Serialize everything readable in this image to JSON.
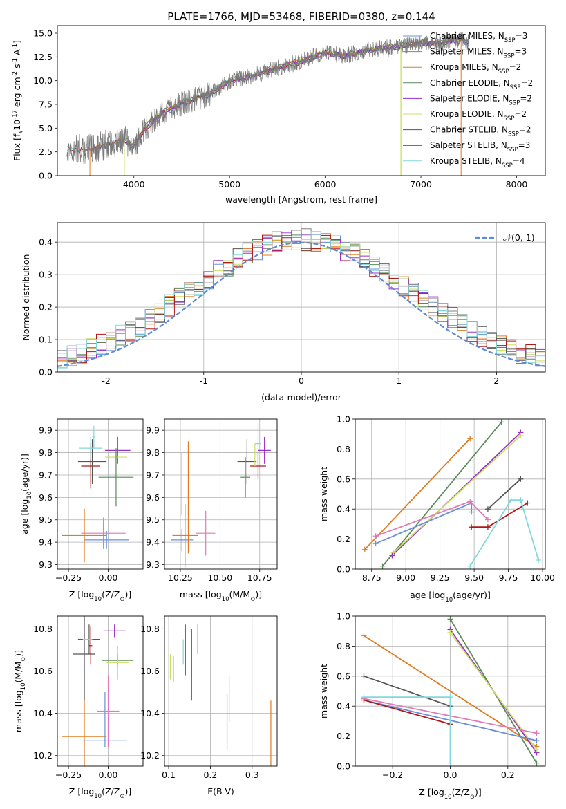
{
  "figure_title": "PLATE=1766, MJD=53468, FIBERID=0380, z=0.144",
  "colors": {
    "Chabrier MILES": "#6b8fd6",
    "Salpeter MILES": "#808080",
    "Kroupa MILES": "#e07b1f",
    "Chabrier ELODIE": "#5a8a5a",
    "Salpeter ELODIE": "#9b30c8",
    "Kroupa ELODIE": "#c8e060",
    "Chabrier STELIB": "#555555",
    "Salpeter STELIB": "#b01818",
    "Kroupa STELIB": "#80d8dc",
    "pink": "#e07ab8",
    "normal": "#5b8bd9",
    "grid": "#b0b0b0"
  },
  "chart_data": [
    {
      "id": "spectrum",
      "type": "line",
      "xlabel": "wavelength [Angstrom, rest frame]",
      "ylabel_parts": [
        "Flux [f",
        "λ",
        "10",
        "-17",
        " erg cm",
        "-2",
        " s",
        "-1",
        " A",
        "-1",
        "]"
      ],
      "xlim": [
        3200,
        8300
      ],
      "ylim": [
        0,
        15.8
      ],
      "xticks": [
        4000,
        5000,
        6000,
        7000,
        8000
      ],
      "yticks": [
        0.0,
        2.5,
        5.0,
        7.5,
        10.0,
        12.5,
        15.0
      ],
      "ytick_labels": [
        "0.0",
        "2.5",
        "5.0",
        "7.5",
        "10.0",
        "12.5",
        "15.0"
      ],
      "continuum": [
        [
          3300,
          2.8
        ],
        [
          3500,
          2.7
        ],
        [
          3700,
          3.2
        ],
        [
          3900,
          3.8
        ],
        [
          4000,
          3.0
        ],
        [
          4100,
          4.8
        ],
        [
          4300,
          6.6
        ],
        [
          4500,
          7.6
        ],
        [
          4800,
          8.6
        ],
        [
          5000,
          10.0
        ],
        [
          5200,
          10.4
        ],
        [
          5500,
          11.3
        ],
        [
          5800,
          12.2
        ],
        [
          6000,
          13.0
        ],
        [
          6200,
          12.6
        ],
        [
          6500,
          13.3
        ],
        [
          6800,
          13.6
        ],
        [
          7000,
          14.0
        ],
        [
          7200,
          13.9
        ],
        [
          7400,
          14.4
        ],
        [
          7500,
          14.0
        ]
      ],
      "legend": [
        {
          "label": "Chabrier MILES, N",
          "sub": "SSP",
          "tail": "=3",
          "color": "#6b8fd6"
        },
        {
          "label": "Salpeter MILES, N",
          "sub": "SSP",
          "tail": "=3",
          "color": "#808080"
        },
        {
          "label": "Kroupa MILES, N",
          "sub": "SSP",
          "tail": "=2",
          "color": "#e07b1f"
        },
        {
          "label": "Chabrier ELODIE, N",
          "sub": "SSP",
          "tail": "=2",
          "color": "#5a8a5a"
        },
        {
          "label": "Salpeter ELODIE, N",
          "sub": "SSP",
          "tail": "=2",
          "color": "#9b30c8"
        },
        {
          "label": "Kroupa ELODIE, N",
          "sub": "SSP",
          "tail": "=2",
          "color": "#c8e060"
        },
        {
          "label": "Chabrier STELIB, N",
          "sub": "SSP",
          "tail": "=2",
          "color": "#555555"
        },
        {
          "label": "Salpeter STELIB, N",
          "sub": "SSP",
          "tail": "=3",
          "color": "#b01818"
        },
        {
          "label": "Kroupa STELIB, N",
          "sub": "SSP",
          "tail": "=4",
          "color": "#80d8dc"
        }
      ]
    },
    {
      "id": "residuals",
      "type": "line",
      "xlabel": "(data-model)/error",
      "ylabel": "Normed distribution",
      "xlim": [
        -2.5,
        2.5
      ],
      "ylim": [
        0,
        0.46
      ],
      "xticks": [
        -2,
        -1,
        0,
        1,
        2
      ],
      "yticks": [
        0.0,
        0.1,
        0.2,
        0.3,
        0.4
      ],
      "ytick_labels": [
        "0.0",
        "0.1",
        "0.2",
        "0.3",
        "0.4"
      ],
      "legend_label": "𝒩(0, 1)",
      "bin_width": 0.1
    },
    {
      "id": "age_vs_Z",
      "type": "scatter",
      "xlabel_parts": [
        "Z [log",
        "10",
        "(Z/Z",
        "⊙",
        ")]"
      ],
      "ylabel_parts": [
        "age  [log",
        "10",
        "(age/yr)]"
      ],
      "xlim": [
        -0.32,
        0.22
      ],
      "ylim": [
        9.28,
        9.95
      ],
      "xticks": [
        -0.25,
        0.0
      ],
      "xtick_labels": [
        "−0.25",
        "0.00"
      ],
      "yticks": [
        9.3,
        9.4,
        9.5,
        9.6,
        9.7,
        9.8,
        9.9
      ],
      "ytick_labels": [
        "9.3",
        "9.4",
        "9.5",
        "9.6",
        "9.7",
        "9.8",
        "9.9"
      ],
      "points": [
        {
          "x": -0.03,
          "y": 9.44,
          "xerr": 0.14,
          "yerr": 0.07,
          "color": "#e07ab8"
        },
        {
          "x": -0.01,
          "y": 9.41,
          "xerr": 0.14,
          "yerr": 0.04,
          "color": "#6b8fd6"
        },
        {
          "x": -0.15,
          "y": 9.43,
          "xerr": 0.14,
          "yerr": 0.12,
          "color": "#e07b1f"
        },
        {
          "x": -0.11,
          "y": 9.74,
          "xerr": 0.06,
          "yerr": 0.1,
          "color": "#b01818"
        },
        {
          "x": 0.06,
          "y": 9.81,
          "xerr": 0.08,
          "yerr": 0.06,
          "color": "#9b30c8"
        },
        {
          "x": -0.1,
          "y": 9.76,
          "xerr": 0.09,
          "yerr": 0.1,
          "color": "#555555"
        },
        {
          "x": -0.09,
          "y": 9.87,
          "xerr": 0.01,
          "yerr": 0.05,
          "color": "#80d8dc"
        },
        {
          "x": -0.11,
          "y": 9.82,
          "xerr": 0.07,
          "yerr": 0.05,
          "color": "#80d8dc"
        },
        {
          "x": 0.05,
          "y": 9.78,
          "xerr": 0.07,
          "yerr": 0.03,
          "color": "#c8e060"
        },
        {
          "x": 0.05,
          "y": 9.69,
          "xerr": 0.11,
          "yerr": 0.13,
          "color": "#5a8a5a"
        }
      ]
    },
    {
      "id": "age_vs_mass",
      "type": "scatter",
      "xlabel_parts": [
        "mass [log",
        "10",
        "(M/M",
        "⊙",
        ")]"
      ],
      "xlim": [
        10.15,
        10.86
      ],
      "ylim": [
        9.28,
        9.95
      ],
      "xticks": [
        10.25,
        10.5,
        10.75
      ],
      "xtick_labels": [
        "10.25",
        "10.50",
        "10.75"
      ],
      "yticks": [
        9.3,
        9.4,
        9.5,
        9.6,
        9.7,
        9.8,
        9.9
      ],
      "ytick_labels": [
        "9.3",
        "9.4",
        "9.5",
        "9.6",
        "9.7",
        "9.8",
        "9.9"
      ],
      "points": [
        {
          "x": 10.41,
          "y": 9.44,
          "xerr": 0.06,
          "yerr": 0.1,
          "color": "#e07ab8"
        },
        {
          "x": 10.26,
          "y": 9.41,
          "xerr": 0.07,
          "yerr": 0.05,
          "color": "#6b8fd6"
        },
        {
          "x": 10.28,
          "y": 9.43,
          "xerr": 0.08,
          "yerr": 0.14,
          "color": "#e07b1f"
        },
        {
          "x": 10.26,
          "y": 9.66,
          "xerr": 0.0,
          "yerr": 0.14,
          "color": "#6b8fd6"
        },
        {
          "x": 10.3,
          "y": 9.6,
          "xerr": 0.0,
          "yerr": 0.25,
          "color": "#e07b1f"
        },
        {
          "x": 10.74,
          "y": 9.74,
          "xerr": 0.05,
          "yerr": 0.06,
          "color": "#b01818"
        },
        {
          "x": 10.78,
          "y": 9.81,
          "xerr": 0.04,
          "yerr": 0.06,
          "color": "#9b30c8"
        },
        {
          "x": 10.67,
          "y": 9.76,
          "xerr": 0.06,
          "yerr": 0.1,
          "color": "#555555"
        },
        {
          "x": 10.74,
          "y": 9.84,
          "xerr": 0.02,
          "yerr": 0.09,
          "color": "#80d8dc"
        },
        {
          "x": 10.66,
          "y": 9.69,
          "xerr": 0.03,
          "yerr": 0.09,
          "color": "#5a8a5a"
        },
        {
          "x": 10.72,
          "y": 9.79,
          "xerr": 0.0,
          "yerr": 0.05,
          "color": "#c8e060"
        }
      ]
    },
    {
      "id": "weight_vs_age",
      "type": "line",
      "xlabel_parts": [
        "age  [log",
        "10",
        "(age/yr)]"
      ],
      "ylabel": "mass weight",
      "xlim": [
        8.63,
        10.02
      ],
      "ylim": [
        0,
        1.0
      ],
      "xticks": [
        8.75,
        9.0,
        9.25,
        9.5,
        9.75,
        10.0
      ],
      "xtick_labels": [
        "8.75",
        "9.00",
        "9.25",
        "9.50",
        "9.75",
        "10.00"
      ],
      "yticks": [
        0.0,
        0.2,
        0.4,
        0.6,
        0.8,
        1.0
      ],
      "ytick_labels": [
        "0.0",
        "0.2",
        "0.4",
        "0.6",
        "0.8",
        "1.0"
      ],
      "series": [
        {
          "color": "#e07b1f",
          "x": [
            8.7,
            9.47
          ],
          "y": [
            0.13,
            0.87
          ]
        },
        {
          "color": "#5a8a5a",
          "x": [
            8.83,
            9.7
          ],
          "y": [
            0.02,
            0.98
          ]
        },
        {
          "color": "#9b30c8",
          "x": [
            8.9,
            9.84
          ],
          "y": [
            0.09,
            0.91
          ]
        },
        {
          "color": "#c8e060",
          "x": [
            8.91,
            9.84
          ],
          "y": [
            0.11,
            0.89
          ]
        },
        {
          "color": "#6b8fd6",
          "x": [
            8.78,
            9.48,
            9.48
          ],
          "y": [
            0.17,
            0.44,
            0.38
          ]
        },
        {
          "color": "#e07ab8",
          "x": [
            8.78,
            9.47,
            9.6
          ],
          "y": [
            0.22,
            0.45,
            0.33
          ]
        },
        {
          "color": "#555555",
          "x": [
            9.6,
            9.84
          ],
          "y": [
            0.4,
            0.6
          ]
        },
        {
          "color": "#b01818",
          "x": [
            9.48,
            9.6,
            9.89
          ],
          "y": [
            0.28,
            0.28,
            0.44
          ]
        },
        {
          "color": "#80d8dc",
          "x": [
            9.47,
            9.77,
            9.84,
            9.97
          ],
          "y": [
            0.02,
            0.46,
            0.46,
            0.06
          ]
        }
      ]
    },
    {
      "id": "mass_vs_Z",
      "type": "scatter",
      "xlabel_parts": [
        "Z [log",
        "10",
        "(Z/Z",
        "⊙",
        ")]"
      ],
      "ylabel_parts": [
        "mass [log",
        "10",
        "(M/M",
        "⊙",
        ")]"
      ],
      "xlim": [
        -0.32,
        0.22
      ],
      "ylim": [
        10.15,
        10.86
      ],
      "xticks": [
        -0.25,
        0.0
      ],
      "xtick_labels": [
        "−0.25",
        "0.00"
      ],
      "yticks": [
        10.2,
        10.4,
        10.6,
        10.8
      ],
      "ytick_labels": [
        "10.2",
        "10.4",
        "10.6",
        "10.8"
      ],
      "points": [
        {
          "x": -0.15,
          "y": 10.29,
          "xerr": 0.14,
          "yerr": 0.17,
          "color": "#e07b1f"
        },
        {
          "x": -0.02,
          "y": 10.27,
          "xerr": 0.14,
          "yerr": 0.0,
          "color": "#6b8fd6"
        },
        {
          "x": -0.02,
          "y": 10.37,
          "xerr": 0.0,
          "yerr": 0.13,
          "color": "#6b8fd6"
        },
        {
          "x": 0.0,
          "y": 10.41,
          "xerr": 0.07,
          "yerr": 0.17,
          "color": "#e07ab8"
        },
        {
          "x": -0.15,
          "y": 10.68,
          "xerr": 0.07,
          "yerr": 0.22,
          "color": "#555555"
        },
        {
          "x": -0.12,
          "y": 10.75,
          "xerr": 0.07,
          "yerr": 0.07,
          "color": "#555555"
        },
        {
          "x": -0.11,
          "y": 10.72,
          "xerr": 0.01,
          "yerr": 0.09,
          "color": "#b01818"
        },
        {
          "x": 0.04,
          "y": 10.79,
          "xerr": 0.07,
          "yerr": 0.03,
          "color": "#9b30c8"
        },
        {
          "x": 0.06,
          "y": 10.65,
          "xerr": 0.1,
          "yerr": 0.03,
          "color": "#5a8a5a"
        },
        {
          "x": 0.06,
          "y": 10.64,
          "xerr": 0.07,
          "yerr": 0.08,
          "color": "#c8e060"
        },
        {
          "x": -0.13,
          "y": 10.75,
          "xerr": 0.03,
          "yerr": 0.0,
          "color": "#80d8dc"
        }
      ]
    },
    {
      "id": "mass_vs_EBV",
      "type": "scatter",
      "xlabel": "E(B-V)",
      "xlim": [
        0.09,
        0.36
      ],
      "ylim": [
        10.15,
        10.86
      ],
      "xticks": [
        0.1,
        0.2,
        0.3
      ],
      "xtick_labels": [
        "0.1",
        "0.2",
        "0.3"
      ],
      "yticks": [
        10.2,
        10.4,
        10.6,
        10.8
      ],
      "ytick_labels": [
        "10.2",
        "10.4",
        "10.6",
        "10.8"
      ],
      "points": [
        {
          "x": 0.104,
          "y": 10.62,
          "xerr": 0.0,
          "yerr": 0.06,
          "color": "#c8e060"
        },
        {
          "x": 0.112,
          "y": 10.61,
          "xerr": 0.0,
          "yerr": 0.06,
          "color": "#c8e060"
        },
        {
          "x": 0.135,
          "y": 10.69,
          "xerr": 0.0,
          "yerr": 0.06,
          "color": "#80d8dc"
        },
        {
          "x": 0.14,
          "y": 10.7,
          "xerr": 0.0,
          "yerr": 0.12,
          "color": "#b01818"
        },
        {
          "x": 0.155,
          "y": 10.63,
          "xerr": 0.0,
          "yerr": 0.17,
          "color": "#555555"
        },
        {
          "x": 0.17,
          "y": 10.75,
          "xerr": 0.0,
          "yerr": 0.07,
          "color": "#9b30c8"
        },
        {
          "x": 0.24,
          "y": 10.36,
          "xerr": 0.0,
          "yerr": 0.13,
          "color": "#6b8fd6"
        },
        {
          "x": 0.245,
          "y": 10.47,
          "xerr": 0.0,
          "yerr": 0.11,
          "color": "#e07ab8"
        },
        {
          "x": 0.345,
          "y": 10.28,
          "xerr": 0.0,
          "yerr": 0.18,
          "color": "#e07b1f"
        }
      ]
    },
    {
      "id": "weight_vs_Z",
      "type": "line",
      "xlabel_parts": [
        "Z [log",
        "10",
        "(Z/Z",
        "⊙",
        ")]"
      ],
      "ylabel": "mass weight",
      "xlim": [
        -0.33,
        0.33
      ],
      "ylim": [
        0,
        1.0
      ],
      "xticks": [
        -0.2,
        0.0,
        0.2
      ],
      "xtick_labels": [
        "−0.2",
        "0.0",
        "0.2"
      ],
      "yticks": [
        0.0,
        0.2,
        0.4,
        0.6,
        0.8,
        1.0
      ],
      "ytick_labels": [
        "0.0",
        "0.2",
        "0.4",
        "0.6",
        "0.8",
        "1.0"
      ],
      "series": [
        {
          "color": "#e07b1f",
          "x": [
            -0.3,
            0.3
          ],
          "y": [
            0.87,
            0.13
          ]
        },
        {
          "color": "#5a8a5a",
          "x": [
            0.0,
            0.3
          ],
          "y": [
            0.98,
            0.02
          ]
        },
        {
          "color": "#9b30c8",
          "x": [
            0.0,
            0.3
          ],
          "y": [
            0.91,
            0.09
          ]
        },
        {
          "color": "#c8e060",
          "x": [
            0.0,
            0.3
          ],
          "y": [
            0.89,
            0.11
          ]
        },
        {
          "color": "#555555",
          "x": [
            -0.3,
            0.0
          ],
          "y": [
            0.6,
            0.4
          ]
        },
        {
          "color": "#6b8fd6",
          "x": [
            -0.3,
            0.3
          ],
          "y": [
            0.44,
            0.17
          ]
        },
        {
          "color": "#e07ab8",
          "x": [
            -0.3,
            0.3
          ],
          "y": [
            0.45,
            0.22
          ]
        },
        {
          "color": "#b01818",
          "x": [
            -0.3,
            0.0
          ],
          "y": [
            0.44,
            0.28
          ]
        },
        {
          "color": "#80d8dc",
          "x": [
            -0.3,
            0.0,
            0.0
          ],
          "y": [
            0.46,
            0.46,
            0.02
          ]
        }
      ]
    }
  ]
}
